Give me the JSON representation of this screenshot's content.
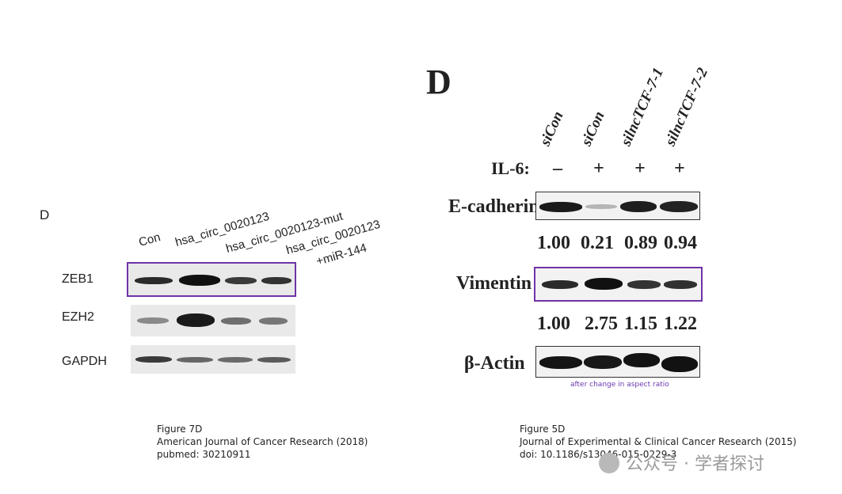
{
  "left_figure": {
    "panel_label": "D",
    "lanes": [
      "Con",
      "hsa_circ_0020123",
      "hsa_circ_0020123-mut",
      "hsa_circ_0020123",
      "+miR-144"
    ],
    "rows": [
      "ZEB1",
      "EZH2",
      "GAPDH"
    ],
    "caption": [
      "Figure 7D",
      "American Journal of Cancer Research (2018)",
      "pubmed: 30210911"
    ]
  },
  "right_figure": {
    "panel_label": "D",
    "lanes": [
      "siCon",
      "siCon",
      "silncTCF-7-1",
      "silncTCF-7-2"
    ],
    "treatment_label": "IL-6:",
    "treatment_signs": [
      "–",
      "+",
      "+",
      "+"
    ],
    "rows": [
      "E-cadherin",
      "Vimentin",
      "β-Actin"
    ],
    "ecadherin_quant": [
      "1.00",
      "0.21",
      "0.89",
      "0.94"
    ],
    "vimentin_quant": [
      "1.00",
      "2.75",
      "1.15",
      "1.22"
    ],
    "note": "after change in aspect ratio",
    "caption": [
      "Figure 5D",
      "Journal of Experimental & Clinical Cancer Research (2015)",
      "doi: 10.1186/s13046-015-0229-3"
    ]
  },
  "watermark": "公众号 · 学者探讨",
  "colors": {
    "highlight": "#6f33a6",
    "note": "#6b3ab0"
  }
}
